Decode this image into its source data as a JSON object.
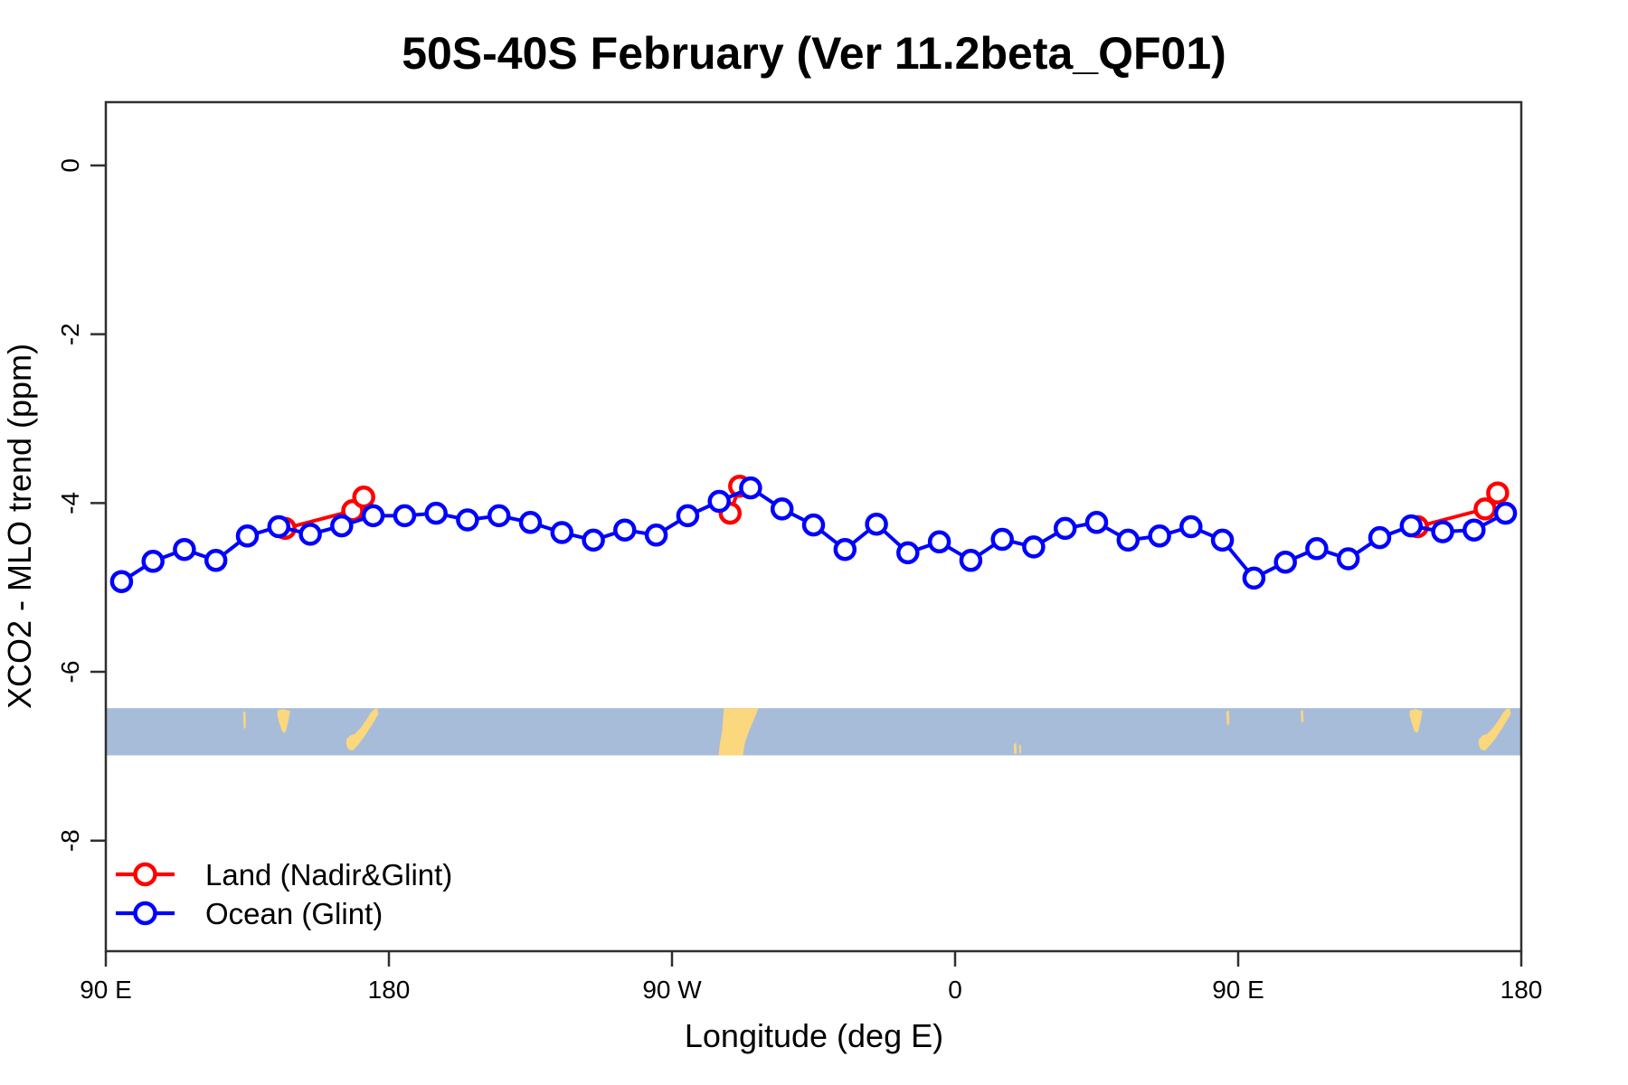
{
  "title": "50S-40S February (Ver 11.2beta_QF01)",
  "chart_data": {
    "type": "line",
    "title": "50S-40S February (Ver 11.2beta_QF01)",
    "xlabel": "Longitude (deg E)",
    "ylabel": "XCO2 - MLO trend (ppm)",
    "grid": false,
    "legend_position": "bottom-left-inside",
    "x_axis": {
      "min": 90,
      "max": 540,
      "ticks": [
        90,
        180,
        270,
        360,
        450,
        540
      ],
      "tick_labels": [
        "90 E",
        "180",
        "90 W",
        "0",
        "90 E",
        "180"
      ]
    },
    "y_axis": {
      "min": -9.31,
      "max": 0.75,
      "ticks": [
        0,
        -2,
        -4,
        -6,
        -8
      ],
      "tick_labels": [
        "0",
        "-2",
        "-4",
        "-6",
        "-8"
      ]
    },
    "series": [
      {
        "name": "Land (Nadir&Glint)",
        "color": "#ff0000",
        "marker": "open-circle",
        "segments": [
          [
            [
              147,
              -4.3
            ],
            [
              168.5,
              -4.09
            ],
            [
              172,
              -3.93
            ]
          ],
          [
            [
              288.5,
              -4.12
            ],
            [
              291.5,
              -3.8
            ]
          ],
          [
            [
              507,
              -4.28
            ],
            [
              528.5,
              -4.07
            ],
            [
              532.5,
              -3.88
            ]
          ]
        ]
      },
      {
        "name": "Ocean (Glint)",
        "color": "#0000ff",
        "marker": "open-circle",
        "segments": [
          [
            [
              95,
              -4.93
            ],
            [
              105,
              -4.69
            ],
            [
              115,
              -4.55
            ],
            [
              125,
              -4.68
            ],
            [
              135,
              -4.39
            ],
            [
              145,
              -4.28
            ],
            [
              155,
              -4.37
            ],
            [
              165,
              -4.27
            ],
            [
              175,
              -4.15
            ],
            [
              185,
              -4.15
            ],
            [
              195,
              -4.12
            ],
            [
              205,
              -4.2
            ],
            [
              215,
              -4.15
            ],
            [
              225,
              -4.23
            ],
            [
              235,
              -4.35
            ],
            [
              245,
              -4.44
            ],
            [
              255,
              -4.32
            ],
            [
              265,
              -4.38
            ],
            [
              275,
              -4.15
            ],
            [
              285,
              -3.98
            ],
            [
              295,
              -3.82
            ],
            [
              305,
              -4.07
            ],
            [
              315,
              -4.26
            ],
            [
              325,
              -4.55
            ],
            [
              335,
              -4.25
            ],
            [
              345,
              -4.59
            ],
            [
              355,
              -4.46
            ],
            [
              365,
              -4.68
            ],
            [
              375,
              -4.43
            ],
            [
              385,
              -4.52
            ],
            [
              395,
              -4.3
            ],
            [
              405,
              -4.23
            ],
            [
              415,
              -4.44
            ],
            [
              425,
              -4.39
            ],
            [
              435,
              -4.28
            ],
            [
              445,
              -4.44
            ],
            [
              455,
              -4.89
            ],
            [
              465,
              -4.7
            ],
            [
              475,
              -4.54
            ],
            [
              485,
              -4.66
            ],
            [
              495,
              -4.41
            ],
            [
              505,
              -4.27
            ],
            [
              515,
              -4.34
            ],
            [
              525,
              -4.32
            ],
            [
              535,
              -4.12
            ]
          ]
        ]
      }
    ],
    "map_strip": {
      "v_top": -6.43,
      "v_bottom": -6.99,
      "ocean_color": "#a7bcd9",
      "land_color": "#fbd77e",
      "land_shapes": [
        {
          "name": "islet-a",
          "points": [
            [
              133.6,
              0.1
            ],
            [
              134.4,
              0.06
            ],
            [
              134.5,
              0.4
            ],
            [
              133.9,
              0.45
            ]
          ]
        },
        {
          "name": "tasmania",
          "points": [
            [
              144.6,
              0.05
            ],
            [
              146.2,
              0.02
            ],
            [
              148.6,
              0.06
            ],
            [
              148.1,
              0.25
            ],
            [
              147.1,
              0.52
            ],
            [
              146.1,
              0.5
            ],
            [
              145.1,
              0.3
            ],
            [
              144.5,
              0.15
            ]
          ]
        },
        {
          "name": "new-zealand",
          "points": [
            [
              166.5,
              0.66
            ],
            [
              167.7,
              0.58
            ],
            [
              169.3,
              0.54
            ],
            [
              171.0,
              0.42
            ],
            [
              172.6,
              0.27
            ],
            [
              174.2,
              0.1
            ],
            [
              175.3,
              0.02
            ],
            [
              176.3,
              0.0
            ],
            [
              176.7,
              0.12
            ],
            [
              175.1,
              0.3
            ],
            [
              173.5,
              0.47
            ],
            [
              172.0,
              0.62
            ],
            [
              170.3,
              0.77
            ],
            [
              168.5,
              0.9
            ],
            [
              167.1,
              0.87
            ],
            [
              166.4,
              0.76
            ]
          ]
        },
        {
          "name": "south-america",
          "points": [
            [
              286.5,
              0.0
            ],
            [
              297.5,
              0.0
            ],
            [
              296.3,
              0.2
            ],
            [
              294.7,
              0.45
            ],
            [
              293.3,
              0.7
            ],
            [
              292.5,
              1.0
            ],
            [
              284.8,
              1.0
            ],
            [
              285.2,
              0.75
            ],
            [
              285.9,
              0.5
            ],
            [
              286.2,
              0.25
            ]
          ]
        },
        {
          "name": "islet-b",
          "points": [
            [
              378.6,
              0.78
            ],
            [
              379.4,
              0.72
            ],
            [
              379.6,
              0.95
            ],
            [
              378.8,
              0.98
            ]
          ]
        },
        {
          "name": "islet-c",
          "points": [
            [
              380.3,
              0.8
            ],
            [
              380.9,
              0.76
            ],
            [
              381.0,
              0.95
            ],
            [
              380.5,
              0.97
            ]
          ]
        },
        {
          "name": "islet-d",
          "points": [
            [
              446.2,
              0.08
            ],
            [
              447.0,
              0.04
            ],
            [
              447.2,
              0.32
            ],
            [
              446.5,
              0.38
            ]
          ]
        },
        {
          "name": "islet-e",
          "points": [
            [
              469.9,
              0.06
            ],
            [
              470.6,
              0.04
            ],
            [
              470.8,
              0.28
            ],
            [
              470.1,
              0.32
            ]
          ]
        },
        {
          "name": "tasmania-2",
          "points": [
            [
              504.6,
              0.05
            ],
            [
              506.2,
              0.02
            ],
            [
              508.6,
              0.06
            ],
            [
              508.1,
              0.25
            ],
            [
              507.1,
              0.52
            ],
            [
              506.1,
              0.5
            ],
            [
              505.1,
              0.3
            ],
            [
              504.5,
              0.15
            ]
          ]
        },
        {
          "name": "new-zealand-2",
          "points": [
            [
              526.5,
              0.66
            ],
            [
              527.7,
              0.58
            ],
            [
              529.3,
              0.54
            ],
            [
              531.0,
              0.42
            ],
            [
              532.6,
              0.27
            ],
            [
              534.2,
              0.1
            ],
            [
              535.3,
              0.02
            ],
            [
              536.3,
              0.0
            ],
            [
              536.7,
              0.12
            ],
            [
              535.1,
              0.3
            ],
            [
              533.5,
              0.47
            ],
            [
              532.0,
              0.62
            ],
            [
              530.3,
              0.77
            ],
            [
              528.5,
              0.9
            ],
            [
              527.1,
              0.87
            ],
            [
              526.4,
              0.76
            ]
          ]
        }
      ]
    },
    "legend": [
      {
        "label": "Land (Nadir&Glint)",
        "color": "#ff0000"
      },
      {
        "label": "Ocean (Glint)",
        "color": "#0000ff"
      }
    ]
  },
  "style": {
    "axis_color": "#2f2f2f",
    "marker_fill": "#ffffff"
  }
}
